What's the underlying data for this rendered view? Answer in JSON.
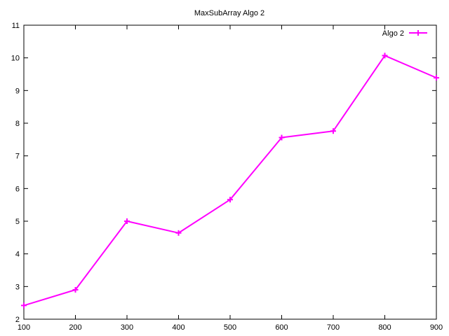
{
  "chart_data": {
    "type": "line",
    "title": "MaxSubArray Algo 2",
    "xlabel": "",
    "ylabel": "",
    "xlim": [
      100,
      900
    ],
    "ylim": [
      2,
      11
    ],
    "xticks": [
      100,
      200,
      300,
      400,
      500,
      600,
      700,
      800,
      900
    ],
    "yticks": [
      2,
      3,
      4,
      5,
      6,
      7,
      8,
      9,
      10,
      11
    ],
    "grid": false,
    "legend_position": "top-right",
    "series": [
      {
        "name": "Algo 2",
        "color": "#ff00ff",
        "marker": "plus",
        "x": [
          100,
          200,
          300,
          400,
          500,
          600,
          700,
          800,
          900
        ],
        "y": [
          2.42,
          2.9,
          5.0,
          4.64,
          5.66,
          7.56,
          7.76,
          10.07,
          9.39
        ]
      }
    ]
  }
}
